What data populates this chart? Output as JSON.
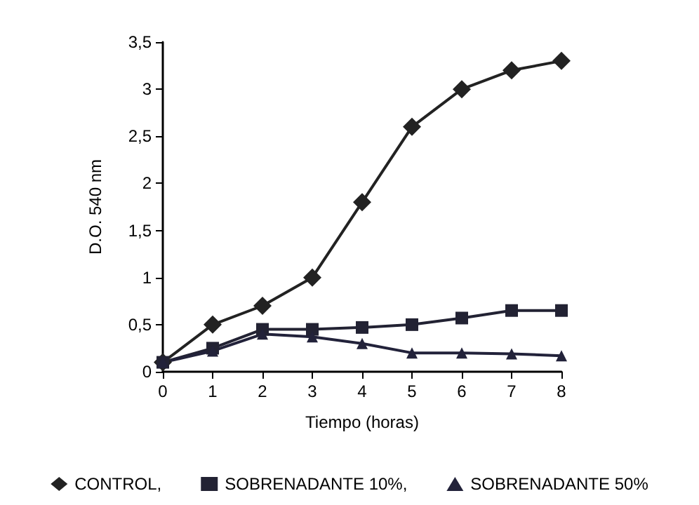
{
  "chart_data": {
    "type": "line",
    "xlabel": "Tiempo (horas)",
    "ylabel": "D.O. 540 nm",
    "x": [
      0,
      1,
      2,
      3,
      4,
      5,
      6,
      7,
      8
    ],
    "series": [
      {
        "name": "CONTROL,",
        "color": "#222222",
        "marker": "diamond",
        "values": [
          0.1,
          0.5,
          0.7,
          1.0,
          1.8,
          2.6,
          3.0,
          3.2,
          3.3
        ]
      },
      {
        "name": "SOBRENADANTE 10%,",
        "color": "#222233",
        "marker": "square",
        "values": [
          0.1,
          0.25,
          0.45,
          0.45,
          0.47,
          0.5,
          0.57,
          0.65,
          0.65
        ]
      },
      {
        "name": "SOBRENADANTE 50%",
        "color": "#22223a",
        "marker": "triangle",
        "values": [
          0.1,
          0.22,
          0.4,
          0.37,
          0.3,
          0.2,
          0.2,
          0.19,
          0.17
        ]
      }
    ],
    "xlim": [
      0,
      8
    ],
    "xticks": [
      0,
      1,
      2,
      3,
      4,
      5,
      6,
      7,
      8
    ],
    "ylim": [
      0,
      3.5
    ],
    "yticks": [
      0,
      {
        "value": 0.5,
        "label": "0,5"
      },
      1,
      {
        "value": 1.5,
        "label": "1,5"
      },
      2,
      {
        "value": 2.5,
        "label": "2,5"
      },
      3,
      {
        "value": 3.5,
        "label": "3,5"
      }
    ],
    "grid": false,
    "legend": "bottom",
    "line_style": "solid"
  }
}
